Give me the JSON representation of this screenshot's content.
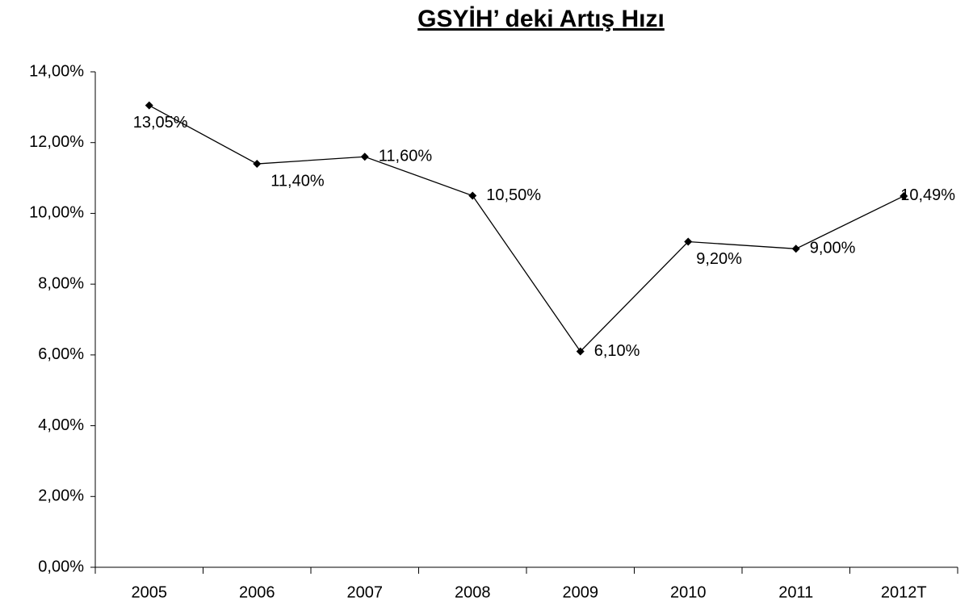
{
  "chart_data": {
    "type": "line",
    "title": "GSYİH’ deki Artış Hızı",
    "categories": [
      "2005",
      "2006",
      "2007",
      "2008",
      "2009",
      "2010",
      "2011",
      "2012T"
    ],
    "series": [
      {
        "name": null,
        "color": "#000000",
        "values": [
          13.05,
          11.4,
          11.6,
          10.5,
          6.1,
          9.2,
          9.0,
          10.49
        ],
        "value_labels": [
          "13,05%",
          "11,40%",
          "11,60%",
          "10,50%",
          "6,10%",
          "9,20%",
          "9,00%",
          "10,49%"
        ]
      }
    ],
    "ylim": [
      0,
      14
    ],
    "yticks": [
      {
        "value": 0,
        "label": "0,00%"
      },
      {
        "value": 2,
        "label": "2,00%"
      },
      {
        "value": 4,
        "label": "4,00%"
      },
      {
        "value": 6,
        "label": "6,00%"
      },
      {
        "value": 8,
        "label": "8,00%"
      },
      {
        "value": 10,
        "label": "10,00%"
      },
      {
        "value": 12,
        "label": "12,00%"
      },
      {
        "value": 14,
        "label": "14,00%"
      }
    ],
    "grid": false
  }
}
